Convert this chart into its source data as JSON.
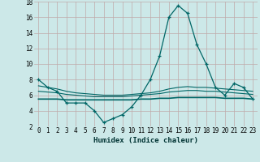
{
  "xlabel": "Humidex (Indice chaleur)",
  "bg_color": "#cce8e8",
  "grid_color": "#c0aaaa",
  "line_color": "#006666",
  "x": [
    0,
    1,
    2,
    3,
    4,
    5,
    6,
    7,
    8,
    9,
    10,
    11,
    12,
    13,
    14,
    15,
    16,
    17,
    18,
    19,
    20,
    21,
    22,
    23
  ],
  "y_main": [
    8,
    7,
    6.5,
    5,
    5,
    5,
    4,
    2.5,
    3,
    3.5,
    4.5,
    6,
    8,
    11,
    16,
    17.5,
    16.5,
    12.5,
    10,
    7,
    6,
    7.5,
    7,
    5.5
  ],
  "y_smooth1": [
    7.2,
    7.0,
    6.8,
    6.5,
    6.3,
    6.2,
    6.1,
    6.0,
    6.0,
    6.0,
    6.1,
    6.2,
    6.3,
    6.5,
    6.8,
    7.0,
    7.1,
    7.0,
    7.0,
    6.9,
    6.8,
    6.7,
    6.6,
    6.5
  ],
  "y_smooth2": [
    6.5,
    6.4,
    6.3,
    6.1,
    6.0,
    5.9,
    5.8,
    5.8,
    5.8,
    5.8,
    5.9,
    6.0,
    6.1,
    6.2,
    6.4,
    6.5,
    6.6,
    6.6,
    6.5,
    6.5,
    6.4,
    6.3,
    6.2,
    6.1
  ],
  "y_smooth3": [
    5.5,
    5.5,
    5.5,
    5.4,
    5.4,
    5.4,
    5.4,
    5.4,
    5.4,
    5.4,
    5.4,
    5.5,
    5.5,
    5.6,
    5.6,
    5.7,
    5.7,
    5.7,
    5.7,
    5.7,
    5.6,
    5.6,
    5.6,
    5.5
  ],
  "ylim": [
    2,
    18
  ],
  "xlim": [
    -0.5,
    23.5
  ],
  "yticks": [
    2,
    4,
    6,
    8,
    10,
    12,
    14,
    16,
    18
  ],
  "xticks": [
    0,
    1,
    2,
    3,
    4,
    5,
    6,
    7,
    8,
    9,
    10,
    11,
    12,
    13,
    14,
    15,
    16,
    17,
    18,
    19,
    20,
    21,
    22,
    23
  ],
  "xtick_labels": [
    "0",
    "1",
    "2",
    "3",
    "4",
    "5",
    "6",
    "7",
    "8",
    "9",
    "10",
    "11",
    "12",
    "13",
    "14",
    "15",
    "16",
    "17",
    "18",
    "19",
    "20",
    "21",
    "22",
    "23"
  ],
  "tick_fontsize": 5.5,
  "xlabel_fontsize": 6.5
}
